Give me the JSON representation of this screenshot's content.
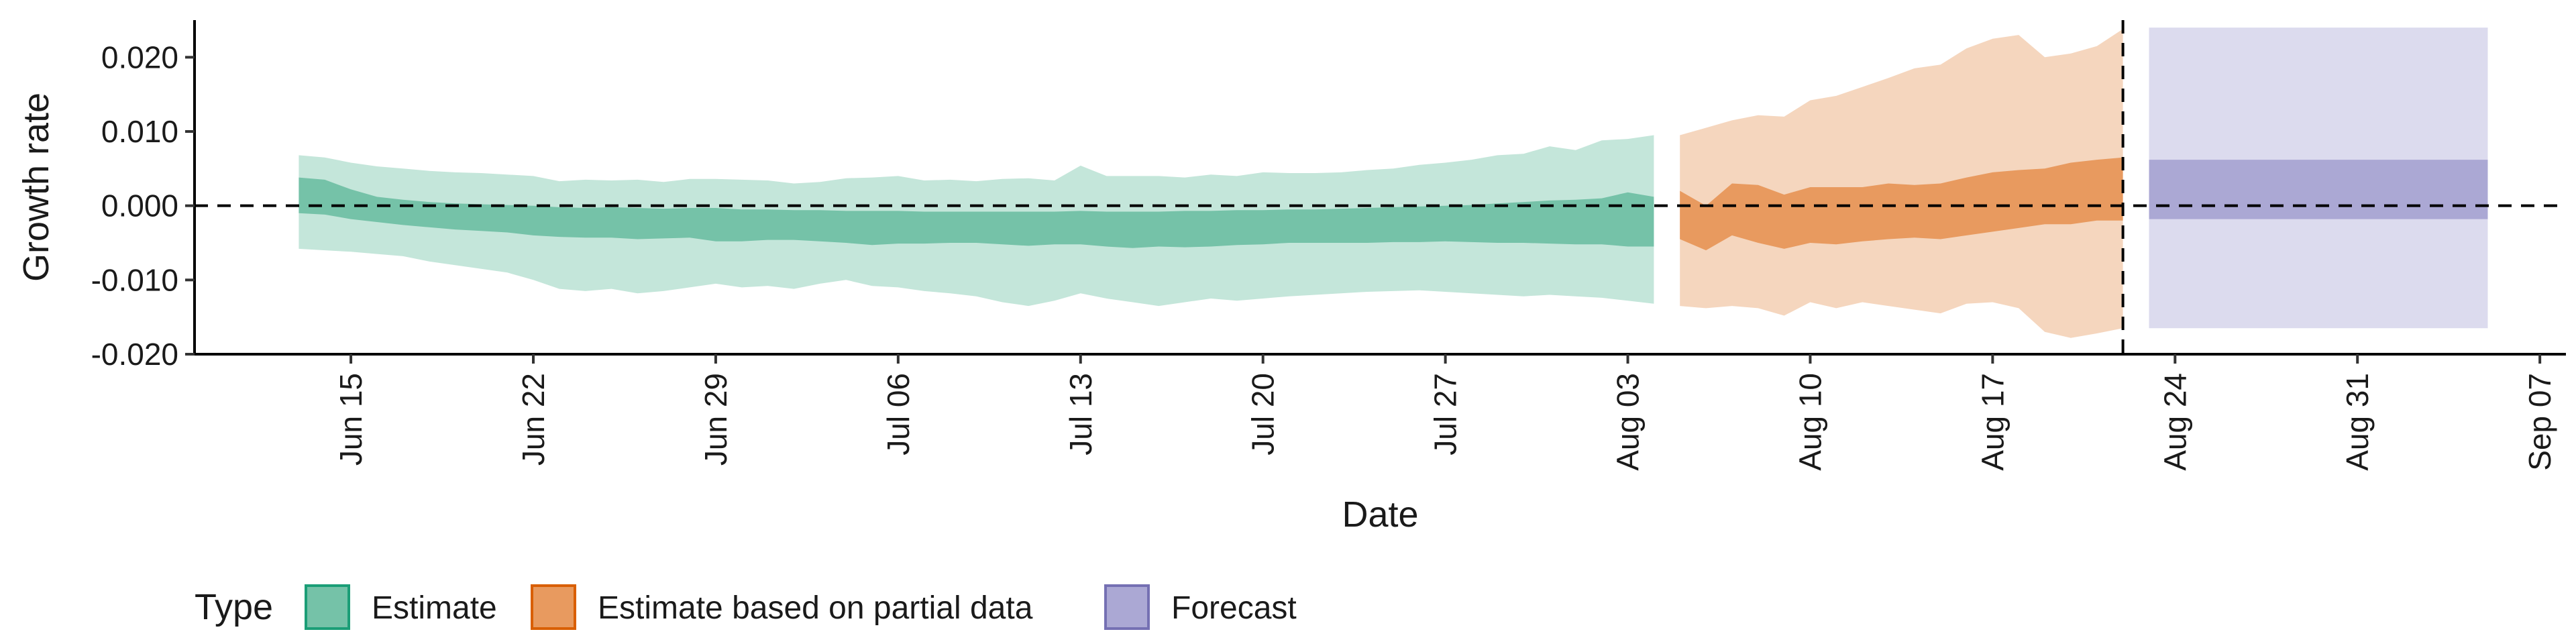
{
  "chart_data": {
    "type": "area",
    "xlabel": "Date",
    "ylabel": "Growth rate",
    "ylim": [
      -0.02,
      0.025
    ],
    "y_ticks": [
      -0.02,
      -0.01,
      0.0,
      0.01,
      0.02
    ],
    "y_tick_labels": [
      "-0.020",
      "-0.010",
      "0.000",
      "0.010",
      "0.020"
    ],
    "xlim": [
      "2020-06-09",
      "2020-09-08"
    ],
    "x_ticks": [
      "2020-06-15",
      "2020-06-22",
      "2020-06-29",
      "2020-07-06",
      "2020-07-13",
      "2020-07-20",
      "2020-07-27",
      "2020-08-03",
      "2020-08-10",
      "2020-08-17",
      "2020-08-24",
      "2020-08-31",
      "2020-09-07"
    ],
    "x_tick_labels": [
      "Jun 15",
      "Jun 22",
      "Jun 29",
      "Jul 06",
      "Jul 13",
      "Jul 20",
      "Jul 27",
      "Aug 03",
      "Aug 10",
      "Aug 17",
      "Aug 24",
      "Aug 31",
      "Sep 07"
    ],
    "grid": false,
    "reference_lines": {
      "horizontal_y": 0,
      "vertical_x": "2020-08-22"
    },
    "legend": {
      "title": "Type",
      "position": "bottom",
      "entries": [
        {
          "label": "Estimate",
          "fill": "#75c2a8",
          "border": "#1b9e77"
        },
        {
          "label": "Estimate based on partial data",
          "fill": "#e89a5f",
          "border": "#d95f02"
        },
        {
          "label": "Forecast",
          "fill": "#aba8d4",
          "border": "#7570b3"
        }
      ]
    },
    "series": [
      {
        "name": "Estimate",
        "color_outer": "#c4e6da",
        "color_inner": "#75c2a8",
        "x": [
          "2020-06-13",
          "2020-06-14",
          "2020-06-15",
          "2020-06-16",
          "2020-06-17",
          "2020-06-18",
          "2020-06-19",
          "2020-06-20",
          "2020-06-21",
          "2020-06-22",
          "2020-06-23",
          "2020-06-24",
          "2020-06-25",
          "2020-06-26",
          "2020-06-27",
          "2020-06-28",
          "2020-06-29",
          "2020-06-30",
          "2020-07-01",
          "2020-07-02",
          "2020-07-03",
          "2020-07-04",
          "2020-07-05",
          "2020-07-06",
          "2020-07-07",
          "2020-07-08",
          "2020-07-09",
          "2020-07-10",
          "2020-07-11",
          "2020-07-12",
          "2020-07-13",
          "2020-07-14",
          "2020-07-15",
          "2020-07-16",
          "2020-07-17",
          "2020-07-18",
          "2020-07-19",
          "2020-07-20",
          "2020-07-21",
          "2020-07-22",
          "2020-07-23",
          "2020-07-24",
          "2020-07-25",
          "2020-07-26",
          "2020-07-27",
          "2020-07-28",
          "2020-07-29",
          "2020-07-30",
          "2020-07-31",
          "2020-08-01",
          "2020-08-02",
          "2020-08-03",
          "2020-08-04"
        ],
        "outer_upper": [
          0.0068,
          0.0065,
          0.0058,
          0.0053,
          0.005,
          0.0047,
          0.0045,
          0.0044,
          0.0042,
          0.004,
          0.0033,
          0.0035,
          0.0034,
          0.0035,
          0.0032,
          0.0036,
          0.0036,
          0.0035,
          0.0034,
          0.003,
          0.0032,
          0.0037,
          0.0038,
          0.004,
          0.0034,
          0.0035,
          0.0033,
          0.0036,
          0.0037,
          0.0034,
          0.0054,
          0.004,
          0.004,
          0.004,
          0.0038,
          0.0042,
          0.004,
          0.0045,
          0.0044,
          0.0044,
          0.0045,
          0.0048,
          0.005,
          0.0055,
          0.0058,
          0.0062,
          0.0068,
          0.007,
          0.008,
          0.0075,
          0.0088,
          0.009,
          0.0095
        ],
        "inner_upper": [
          0.0038,
          0.0035,
          0.0022,
          0.0012,
          0.0008,
          0.0005,
          0.0003,
          0.0002,
          0.0001,
          0.0,
          -0.0002,
          -0.0003,
          -0.0002,
          -0.0003,
          -0.0004,
          -0.0003,
          -0.0003,
          -0.0005,
          -0.0005,
          -0.0006,
          -0.0006,
          -0.0007,
          -0.0007,
          -0.0007,
          -0.0008,
          -0.0008,
          -0.0008,
          -0.0008,
          -0.0008,
          -0.0008,
          -0.0007,
          -0.0008,
          -0.0008,
          -0.0008,
          -0.0007,
          -0.0007,
          -0.0006,
          -0.0006,
          -0.0005,
          -0.0005,
          -0.0004,
          -0.0003,
          -0.0002,
          -0.0001,
          0.0,
          0.0001,
          0.0003,
          0.0005,
          0.0007,
          0.0008,
          0.001,
          0.0018,
          0.0012
        ],
        "inner_lower": [
          -0.001,
          -0.0012,
          -0.0018,
          -0.0022,
          -0.0026,
          -0.0029,
          -0.0032,
          -0.0034,
          -0.0036,
          -0.004,
          -0.0042,
          -0.0043,
          -0.0043,
          -0.0045,
          -0.0044,
          -0.0043,
          -0.0048,
          -0.0048,
          -0.0046,
          -0.0046,
          -0.0048,
          -0.005,
          -0.0053,
          -0.0051,
          -0.0051,
          -0.005,
          -0.005,
          -0.0052,
          -0.0054,
          -0.0052,
          -0.0052,
          -0.0055,
          -0.0057,
          -0.0055,
          -0.0056,
          -0.0055,
          -0.0053,
          -0.0052,
          -0.005,
          -0.005,
          -0.005,
          -0.005,
          -0.0049,
          -0.0049,
          -0.0048,
          -0.0049,
          -0.005,
          -0.005,
          -0.0051,
          -0.0052,
          -0.0052,
          -0.0055,
          -0.0055
        ],
        "outer_lower": [
          -0.0058,
          -0.006,
          -0.0062,
          -0.0065,
          -0.0068,
          -0.0075,
          -0.008,
          -0.0085,
          -0.009,
          -0.01,
          -0.0112,
          -0.0115,
          -0.0112,
          -0.0118,
          -0.0115,
          -0.011,
          -0.0105,
          -0.011,
          -0.0108,
          -0.0112,
          -0.0105,
          -0.01,
          -0.0108,
          -0.011,
          -0.0115,
          -0.0118,
          -0.0122,
          -0.013,
          -0.0135,
          -0.0128,
          -0.0118,
          -0.0125,
          -0.013,
          -0.0135,
          -0.013,
          -0.0125,
          -0.0128,
          -0.0125,
          -0.0122,
          -0.012,
          -0.0118,
          -0.0116,
          -0.0115,
          -0.0114,
          -0.0116,
          -0.0118,
          -0.012,
          -0.0122,
          -0.012,
          -0.0122,
          -0.0124,
          -0.0128,
          -0.0132
        ]
      },
      {
        "name": "Estimate based on partial data",
        "color_outer": "#f5d6be",
        "color_inner": "#e89a5f",
        "x": [
          "2020-08-05",
          "2020-08-06",
          "2020-08-07",
          "2020-08-08",
          "2020-08-09",
          "2020-08-10",
          "2020-08-11",
          "2020-08-12",
          "2020-08-13",
          "2020-08-14",
          "2020-08-15",
          "2020-08-16",
          "2020-08-17",
          "2020-08-18",
          "2020-08-19",
          "2020-08-20",
          "2020-08-21",
          "2020-08-22"
        ],
        "outer_upper": [
          0.0095,
          0.0105,
          0.0115,
          0.0122,
          0.012,
          0.0142,
          0.0148,
          0.016,
          0.0172,
          0.0185,
          0.019,
          0.0212,
          0.0225,
          0.023,
          0.02,
          0.0205,
          0.0215,
          0.0238
        ],
        "inner_upper": [
          0.002,
          0.0,
          0.003,
          0.0028,
          0.0015,
          0.0025,
          0.0025,
          0.0025,
          0.003,
          0.0028,
          0.003,
          0.0038,
          0.0045,
          0.0048,
          0.005,
          0.0058,
          0.0062,
          0.0065
        ],
        "inner_lower": [
          -0.0045,
          -0.006,
          -0.004,
          -0.005,
          -0.0058,
          -0.005,
          -0.0052,
          -0.0048,
          -0.0045,
          -0.0043,
          -0.0045,
          -0.004,
          -0.0035,
          -0.003,
          -0.0025,
          -0.0025,
          -0.002,
          -0.002
        ],
        "outer_lower": [
          -0.0135,
          -0.0138,
          -0.0135,
          -0.0138,
          -0.0148,
          -0.013,
          -0.0138,
          -0.013,
          -0.0135,
          -0.014,
          -0.0145,
          -0.0132,
          -0.013,
          -0.0138,
          -0.017,
          -0.0178,
          -0.0172,
          -0.0165
        ]
      },
      {
        "name": "Forecast",
        "color_outer": "#dcdbee",
        "color_inner": "#aba8d4",
        "x": [
          "2020-08-23",
          "2020-09-05"
        ],
        "outer_upper": [
          0.024,
          0.024
        ],
        "inner_upper": [
          0.0062,
          0.0062
        ],
        "inner_lower": [
          -0.0018,
          -0.0018
        ],
        "outer_lower": [
          -0.0165,
          -0.0165
        ]
      }
    ]
  }
}
